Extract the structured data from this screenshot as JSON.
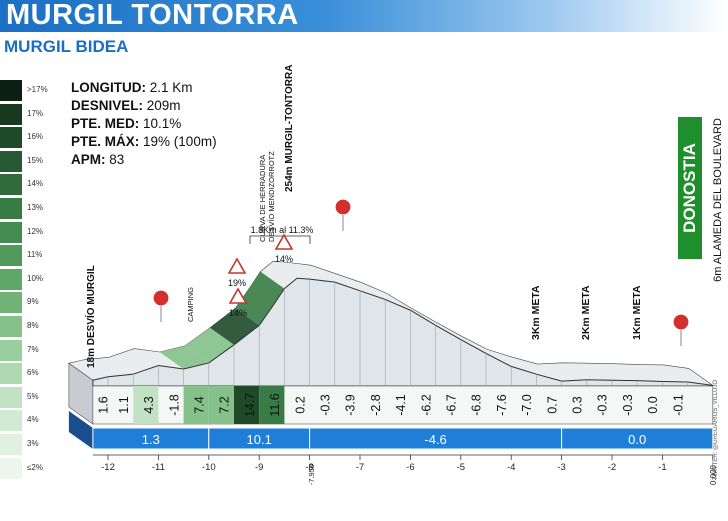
{
  "header": {
    "title": "MURGIL TONTORRA",
    "subtitle": "MURGIL BIDEA"
  },
  "stats": [
    {
      "label": "LONGITUD:",
      "value": "2.1 Km"
    },
    {
      "label": "DESNIVEL:",
      "value": "209m"
    },
    {
      "label": "PTE. MED:",
      "value": "10.1%"
    },
    {
      "label": "PTE. MÁX:",
      "value": "19% (100m)"
    },
    {
      "label": "APM:",
      "value": "83"
    }
  ],
  "legend": [
    {
      "label": ">17%",
      "color": "#0d1e12"
    },
    {
      "label": "17%",
      "color": "#173a1f"
    },
    {
      "label": "16%",
      "color": "#1f4a29"
    },
    {
      "label": "15%",
      "color": "#275a33"
    },
    {
      "label": "14%",
      "color": "#2f6b3b"
    },
    {
      "label": "13%",
      "color": "#387c45"
    },
    {
      "label": "12%",
      "color": "#438c4f"
    },
    {
      "label": "11%",
      "color": "#4f9a5a"
    },
    {
      "label": "10%",
      "color": "#5ea867"
    },
    {
      "label": "9%",
      "color": "#70b577"
    },
    {
      "label": "8%",
      "color": "#84c28a"
    },
    {
      "label": "7%",
      "color": "#99ce9e"
    },
    {
      "label": "6%",
      "color": "#aed9b1"
    },
    {
      "label": "5%",
      "color": "#c1e2c3"
    },
    {
      "label": "4%",
      "color": "#d2ead3"
    },
    {
      "label": "3%",
      "color": "#e0f0e1"
    },
    {
      "label": "≤2%",
      "color": "#edf6ed"
    }
  ],
  "finish": {
    "name": "DONOSTIA",
    "sub": "6m ALAMEDA DEL BOULEVARD",
    "color": "#1f8f2e"
  },
  "credit": "TWITTER: @GREGARIOS_VILLUJO",
  "chart_data": {
    "type": "area",
    "xlabel": "",
    "ylabel": "",
    "xlim": [
      -12,
      0
    ],
    "x": [
      -12.3,
      -12.0,
      -11.5,
      -11.0,
      -10.5,
      -10.0,
      -9.5,
      -9.0,
      -8.7,
      -8.5,
      -8.25,
      -8.0,
      -7.5,
      -7.0,
      -6.5,
      -6.0,
      -5.5,
      -5.0,
      -4.5,
      -4.0,
      -3.5,
      -3.0,
      -2.5,
      -2.0,
      -1.5,
      -1.0,
      -0.5,
      0.0
    ],
    "y": [
      18,
      26,
      32,
      52,
      44,
      58,
      100,
      145,
      195,
      230,
      254,
      252,
      245,
      225,
      205,
      180,
      145,
      112,
      80,
      50,
      32,
      16,
      19,
      18,
      17,
      15,
      14,
      6
    ],
    "xticks": [
      "-12",
      "-11",
      "-10",
      "-9",
      "-8",
      "-7",
      "-6",
      "-5",
      "-4",
      "-3",
      "-2",
      "-1",
      "0.000"
    ],
    "xtick_values": [
      -12,
      -11,
      -10,
      -9,
      -8,
      -7,
      -6,
      -5,
      -4,
      -3,
      -2,
      -1,
      0
    ],
    "extra_tick": {
      "label": "-7.950",
      "value": -7.95
    },
    "segment_gradients": [
      {
        "from": -12.3,
        "to": -12.0,
        "value": 1.6
      },
      {
        "from": -12.0,
        "to": -11.5,
        "value": 1.1
      },
      {
        "from": -11.5,
        "to": -11.0,
        "value": 4.3
      },
      {
        "from": -11.0,
        "to": -10.5,
        "value": -1.8
      },
      {
        "from": -10.5,
        "to": -10.0,
        "value": 7.4
      },
      {
        "from": -10.0,
        "to": -9.5,
        "value": 7.2
      },
      {
        "from": -9.5,
        "to": -9.0,
        "value": 14.7
      },
      {
        "from": -9.0,
        "to": -8.5,
        "value": 11.6
      },
      {
        "from": -8.5,
        "to": -8.0,
        "value": 0.2
      },
      {
        "from": -8.0,
        "to": -7.5,
        "value": -0.3
      },
      {
        "from": -7.5,
        "to": -7.0,
        "value": -3.9
      },
      {
        "from": -7.0,
        "to": -6.5,
        "value": -2.8
      },
      {
        "from": -6.5,
        "to": -6.0,
        "value": -4.1
      },
      {
        "from": -6.0,
        "to": -5.5,
        "value": -6.2
      },
      {
        "from": -5.5,
        "to": -5.0,
        "value": -6.7
      },
      {
        "from": -5.0,
        "to": -4.5,
        "value": -6.8
      },
      {
        "from": -4.5,
        "to": -4.0,
        "value": -7.6
      },
      {
        "from": -4.0,
        "to": -3.5,
        "value": -7.0
      },
      {
        "from": -3.5,
        "to": -3.0,
        "value": 0.7
      },
      {
        "from": -3.0,
        "to": -2.5,
        "value": 0.3
      },
      {
        "from": -2.5,
        "to": -2.0,
        "value": -0.3
      },
      {
        "from": -2.0,
        "to": -1.5,
        "value": -0.3
      },
      {
        "from": -1.5,
        "to": -1.0,
        "value": 0.0
      },
      {
        "from": -1.0,
        "to": -0.5,
        "value": -0.1
      }
    ],
    "section_gradients": [
      {
        "from": -12.3,
        "to": -10.0,
        "value": "1.3"
      },
      {
        "from": -10.0,
        "to": -8.0,
        "value": "10.1"
      },
      {
        "from": -8.0,
        "to": -3.0,
        "value": "-4.6"
      },
      {
        "from": -3.0,
        "to": 0.0,
        "value": "0.0"
      }
    ],
    "annotations": [
      {
        "text": "18m DESVÍO MURGIL",
        "x": -12.3
      },
      {
        "text": "CAMPING",
        "x": -10.3
      },
      {
        "text": "CURVA DE HERRADURA",
        "x": -8.95
      },
      {
        "text": "DESVÍO MENDIZORROTZ",
        "x": -8.75
      },
      {
        "text": "254m MURGIL-TONTORRA",
        "x": -8.25
      },
      {
        "text": "1.8Km al 11.3%",
        "x": -9.1
      },
      {
        "text": "3Km META",
        "x": -3.0
      },
      {
        "text": "2Km META",
        "x": -2.0
      },
      {
        "text": "1Km META",
        "x": -1.0
      }
    ],
    "ramps": [
      {
        "label": "14%",
        "x": -10.0
      },
      {
        "label": "19%",
        "x": -9.05
      },
      {
        "label": "14%",
        "x": -8.5
      }
    ]
  }
}
